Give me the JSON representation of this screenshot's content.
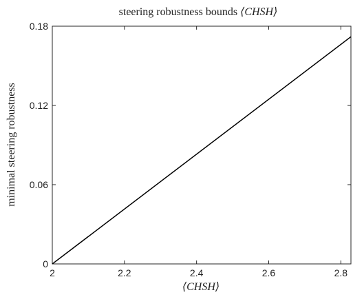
{
  "chart_data": {
    "type": "line",
    "title_prefix": "steering robustness bounds ",
    "title_math": "⟨CHSH⟩",
    "xlabel": "⟨CHSH⟩",
    "ylabel": "minimal steering robustness",
    "xlim": [
      2,
      2.828
    ],
    "ylim": [
      0,
      0.18
    ],
    "xticks": [
      2,
      2.2,
      2.4,
      2.6,
      2.8
    ],
    "xtick_labels": [
      "2",
      "2.2",
      "2.4",
      "2.6",
      "2.8"
    ],
    "yticks": [
      0,
      0.06,
      0.12,
      0.18
    ],
    "ytick_labels": [
      "0",
      "0.06",
      "0.12",
      "0.18"
    ],
    "grid": false,
    "series": [
      {
        "x": [
          2,
          2.828
        ],
        "y": [
          0,
          0.172
        ],
        "color": "#000000"
      }
    ]
  }
}
